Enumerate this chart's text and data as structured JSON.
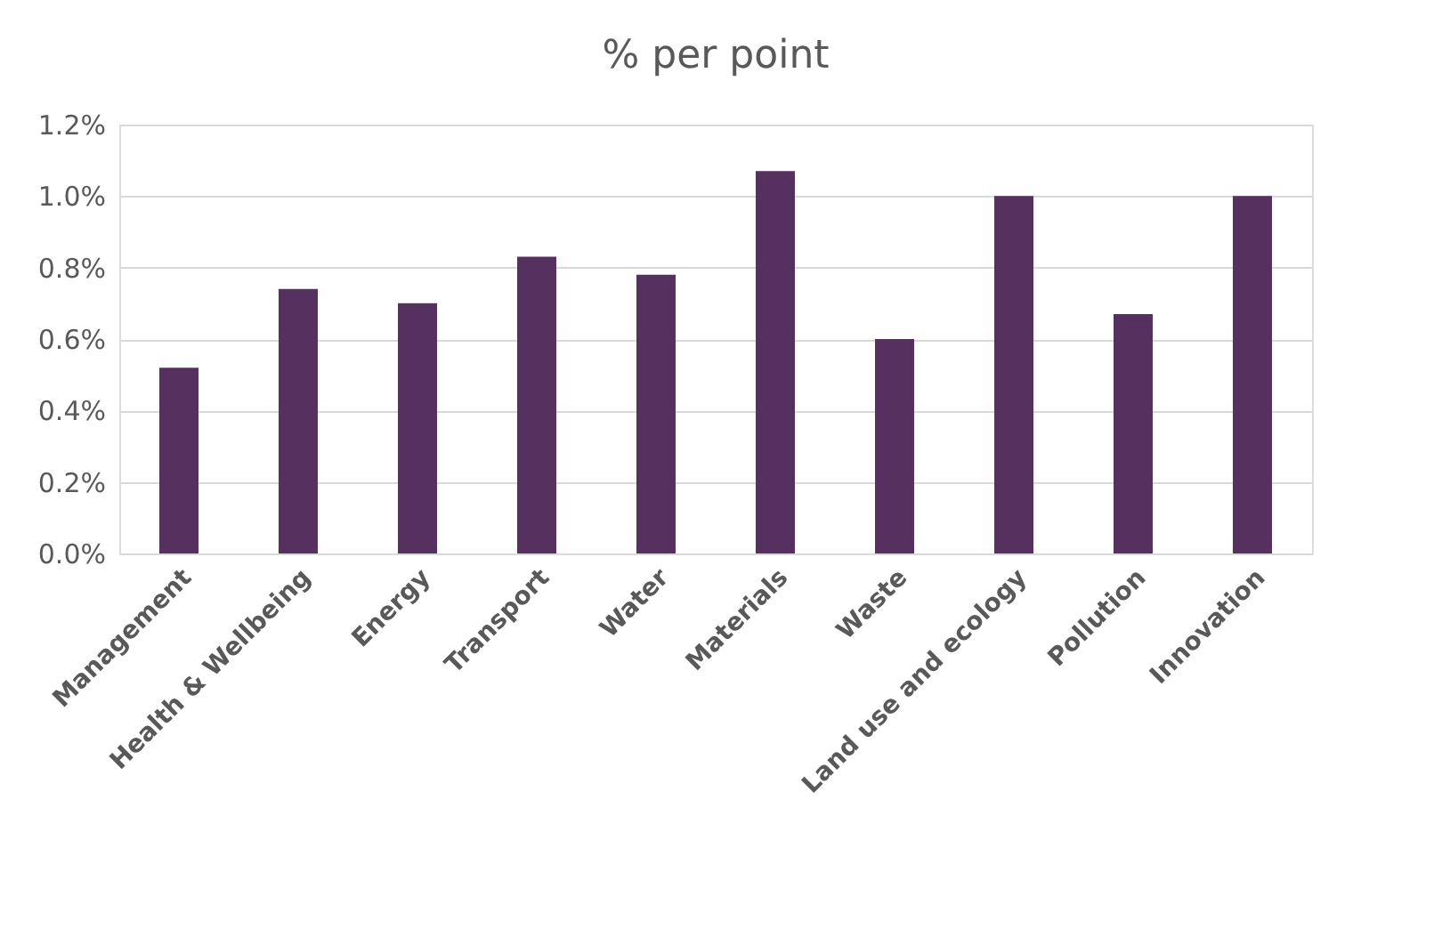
{
  "chart_data": {
    "type": "bar",
    "title": "% per point",
    "categories": [
      "Management",
      "Health & Wellbeing",
      "Energy",
      "Transport",
      "Water",
      "Materials",
      "Waste",
      "Land use and ecology",
      "Pollution",
      "Innovation"
    ],
    "values": [
      0.52,
      0.74,
      0.7,
      0.83,
      0.78,
      1.07,
      0.6,
      1.0,
      0.67,
      1.0
    ],
    "color": "#56305f",
    "ylim": [
      0,
      1.2
    ],
    "yticks": [
      {
        "value": 0,
        "label": "0.0%"
      },
      {
        "value": 0.2,
        "label": "0.2%"
      },
      {
        "value": 0.4,
        "label": "0.4%"
      },
      {
        "value": 0.6,
        "label": "0.6%"
      },
      {
        "value": 0.8,
        "label": "0.8%"
      },
      {
        "value": 1.0,
        "label": "1.0%"
      },
      {
        "value": 1.2,
        "label": "1.2%"
      }
    ],
    "grid": "y"
  }
}
